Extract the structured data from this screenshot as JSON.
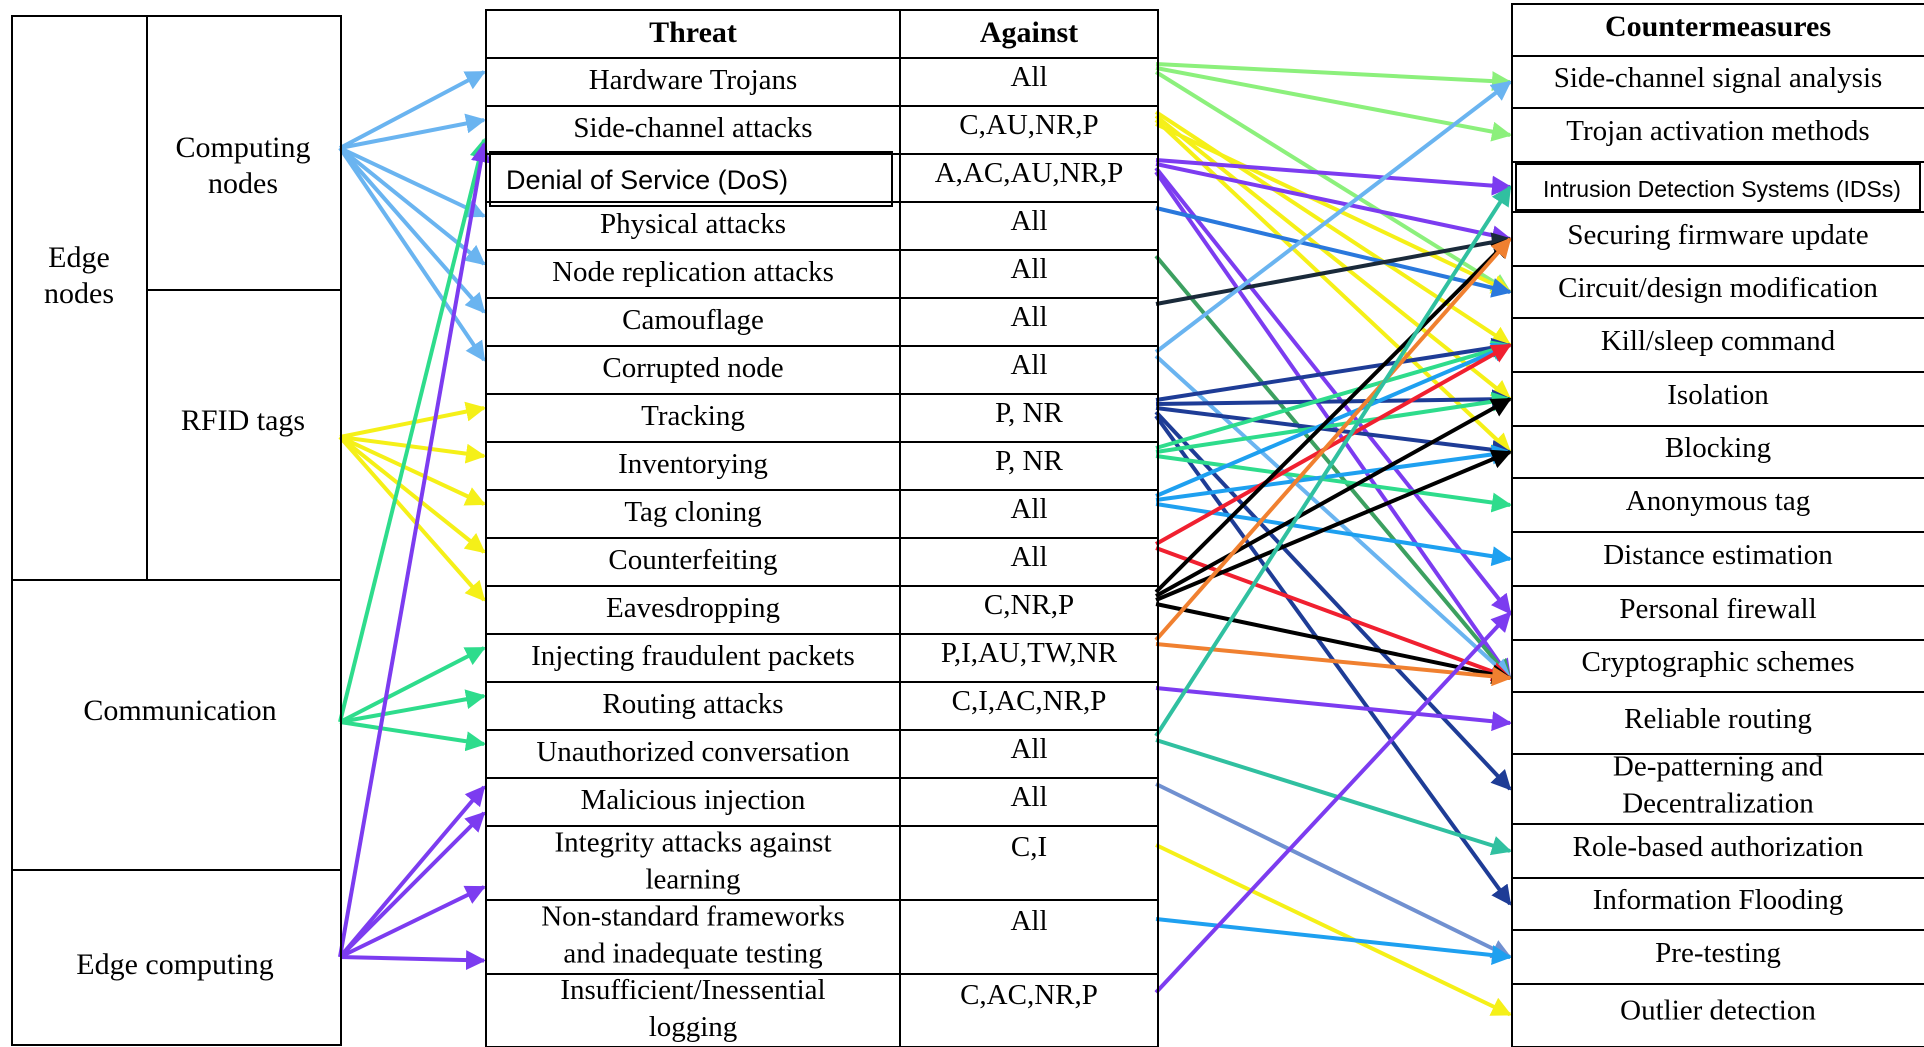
{
  "left": {
    "edge_nodes": "Edge\nnodes",
    "computing_nodes": "Computing\nnodes",
    "rfid_tags": "RFID tags",
    "communication": "Communication",
    "edge_computing": "Edge computing"
  },
  "table": {
    "threat_header": "Threat",
    "against_header": "Against",
    "rows": [
      {
        "threat": "Hardware Trojans",
        "against": "All"
      },
      {
        "threat": "Side-channel attacks",
        "against": "C,AU,NR,P"
      },
      {
        "threat": "Denial of Service (DoS)",
        "against": "A,AC,AU,NR,P"
      },
      {
        "threat": "Physical attacks",
        "against": "All"
      },
      {
        "threat": "Node replication attacks",
        "against": "All"
      },
      {
        "threat": "Camouflage",
        "against": "All"
      },
      {
        "threat": "Corrupted node",
        "against": "All"
      },
      {
        "threat": "Tracking",
        "against": "P, NR"
      },
      {
        "threat": "Inventorying",
        "against": "P, NR"
      },
      {
        "threat": "Tag cloning",
        "against": "All"
      },
      {
        "threat": "Counterfeiting",
        "against": "All"
      },
      {
        "threat": "Eavesdropping",
        "against": "C,NR,P"
      },
      {
        "threat": "Injecting fraudulent packets",
        "against": "P,I,AU,TW,NR"
      },
      {
        "threat": "Routing attacks",
        "against": "C,I,AC,NR,P"
      },
      {
        "threat": "Unauthorized conversation",
        "against": "All"
      },
      {
        "threat": "Malicious injection",
        "against": "All"
      },
      {
        "threat": "Integrity attacks against\nlearning",
        "against": "C,I"
      },
      {
        "threat": "Non-standard frameworks\nand inadequate testing",
        "against": "All"
      },
      {
        "threat": "Insufficient/Inessential\nlogging",
        "against": "C,AC,NR,P"
      }
    ]
  },
  "countermeasures": {
    "header": "Countermeasures",
    "items": [
      "Side-channel signal analysis",
      "Trojan activation methods",
      "Intrusion Detection Systems (IDSs)",
      "Securing firmware update",
      "Circuit/design modification",
      "Kill/sleep command",
      "Isolation",
      "Blocking",
      "Anonymous tag",
      "Distance estimation",
      "Personal firewall",
      "Cryptographic schemes",
      "Reliable routing",
      "De-patterning and\nDecentralization",
      "Role-based authorization",
      "Information Flooding",
      "Pre-testing",
      "Outlier detection"
    ]
  },
  "colors": {
    "light_blue": "#6ab4f0",
    "yellow": "#f5f018",
    "teal_green": "#2edc8c",
    "purple": "#7c3cf0",
    "light_green": "#8cf07c",
    "blue": "#2a78dc",
    "navy": "#1e3c96",
    "dark_slate": "#1a2a3a",
    "black": "#000000",
    "red": "#f02030",
    "orange": "#f08030",
    "olive_green": "#3ca060",
    "sky": "#1ea0f0",
    "steel_blue": "#7090d0",
    "teal": "#30c0a0"
  }
}
